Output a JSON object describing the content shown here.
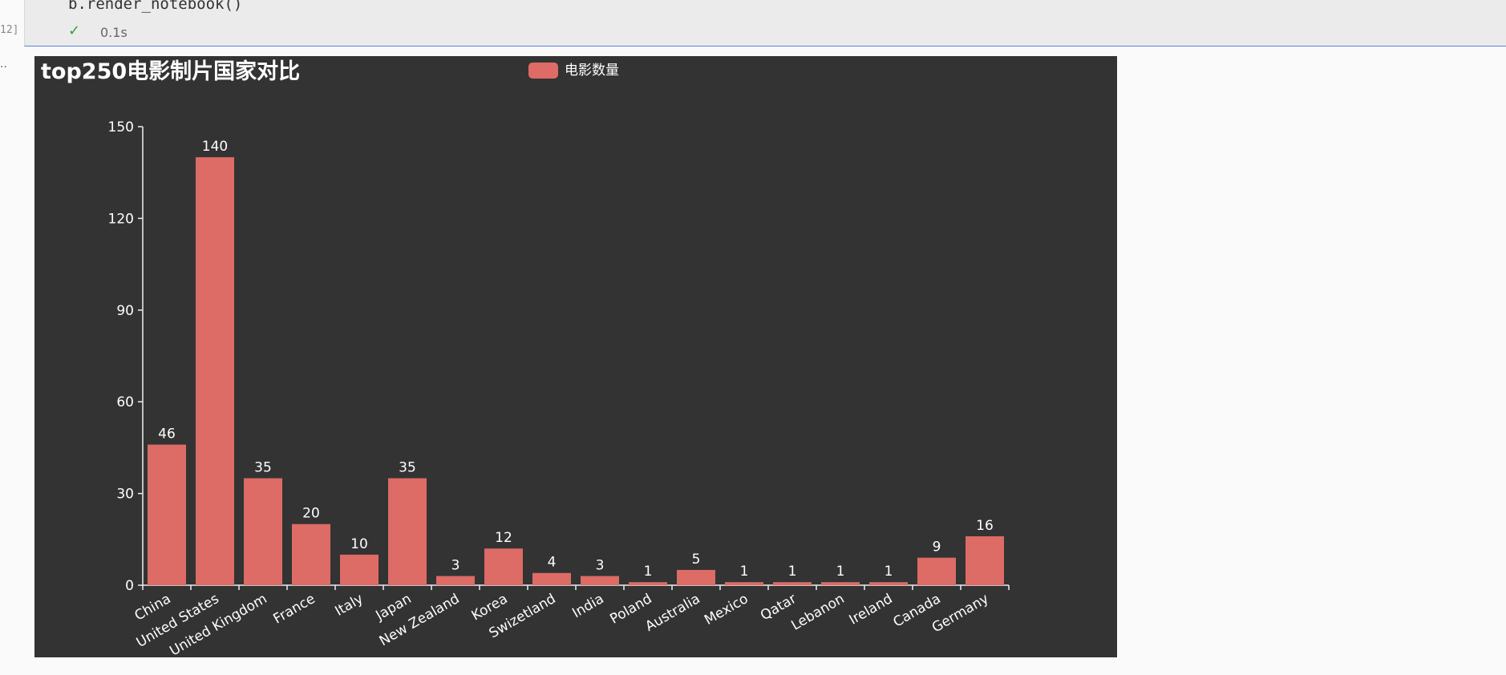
{
  "notebook": {
    "code_line": "b.render_notebook()",
    "execution_count": "12]",
    "status_time": "0.1s",
    "output_prompt": ".."
  },
  "colors": {
    "bar": "#dd6b66",
    "background": "#333333",
    "text": "#ffffff",
    "axis": "#eeeeee"
  },
  "chart_data": {
    "type": "bar",
    "title": "top250电影制片国家对比",
    "legend": "top-center",
    "series": [
      {
        "name": "电影数量",
        "values": [
          46,
          140,
          35,
          20,
          10,
          35,
          3,
          12,
          4,
          3,
          1,
          5,
          1,
          1,
          1,
          1,
          9,
          16
        ]
      }
    ],
    "categories": [
      "China",
      "United States",
      "United Kingdom",
      "France",
      "Italy",
      "Japan",
      "New Zealand",
      "Korea",
      "Swizetland",
      "India",
      "Poland",
      "Australia",
      "Mexico",
      "Qatar",
      "Lebanon",
      "Ireland",
      "Canada",
      "Germany"
    ],
    "ylim": [
      0,
      150
    ],
    "yticks": [
      0,
      30,
      60,
      90,
      120,
      150
    ],
    "grid": false
  }
}
